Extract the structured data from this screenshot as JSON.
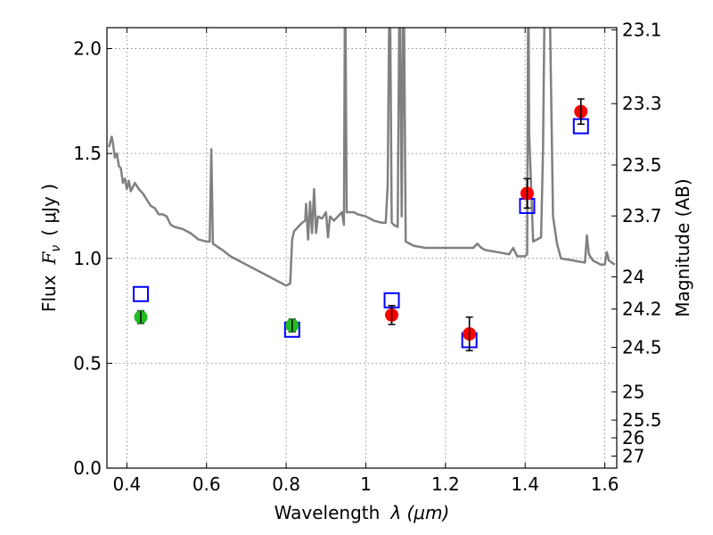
{
  "chart_data": {
    "type": "scatter",
    "xlabel_text": "Wavelength",
    "xlabel_math": "λ (μm)",
    "ylabel_text": "Flux",
    "ylabel_math": "F",
    "ylabel_sub": "ν",
    "ylabel_unit": "( μJy )",
    "y2label": "Magnitude (AB)",
    "xlim": [
      0.35,
      1.63
    ],
    "ylim": [
      0.0,
      2.1
    ],
    "grid": true,
    "x_ticks": [
      0.4,
      0.6,
      0.8,
      1.0,
      1.2,
      1.4,
      1.6
    ],
    "x_tick_labels": [
      "0.4",
      "0.6",
      "0.8",
      "1",
      "1.2",
      "1.4",
      "1.6"
    ],
    "y_ticks": [
      0.0,
      0.5,
      1.0,
      1.5,
      2.0
    ],
    "y_tick_labels": [
      "0.0",
      "0.5",
      "1.0",
      "1.5",
      "2.0"
    ],
    "mag_ticks": [
      23.1,
      23.3,
      23.5,
      23.7,
      24,
      24.2,
      24.5,
      25,
      25.5,
      26,
      27
    ],
    "mag_tick_labels": [
      "23.1",
      "23.3",
      "23.5",
      "23.7",
      "24",
      "24.2",
      "24.5",
      "25",
      "25.5",
      "26",
      "27"
    ],
    "template_spectrum": {
      "color": "#808080",
      "points": [
        [
          0.355,
          1.53
        ],
        [
          0.362,
          1.58
        ],
        [
          0.365,
          1.55
        ],
        [
          0.37,
          1.48
        ],
        [
          0.375,
          1.5
        ],
        [
          0.38,
          1.44
        ],
        [
          0.385,
          1.43
        ],
        [
          0.39,
          1.36
        ],
        [
          0.395,
          1.38
        ],
        [
          0.4,
          1.33
        ],
        [
          0.405,
          1.37
        ],
        [
          0.41,
          1.32
        ],
        [
          0.42,
          1.36
        ],
        [
          0.43,
          1.33
        ],
        [
          0.44,
          1.31
        ],
        [
          0.45,
          1.28
        ],
        [
          0.46,
          1.25
        ],
        [
          0.47,
          1.24
        ],
        [
          0.48,
          1.21
        ],
        [
          0.49,
          1.21
        ],
        [
          0.5,
          1.2
        ],
        [
          0.51,
          1.16
        ],
        [
          0.52,
          1.15
        ],
        [
          0.54,
          1.14
        ],
        [
          0.56,
          1.12
        ],
        [
          0.58,
          1.09
        ],
        [
          0.6,
          1.08
        ],
        [
          0.608,
          1.08
        ],
        [
          0.612,
          1.52
        ],
        [
          0.616,
          1.07
        ],
        [
          0.64,
          1.04
        ],
        [
          0.66,
          1.01
        ],
        [
          0.68,
          0.99
        ],
        [
          0.7,
          0.97
        ],
        [
          0.72,
          0.95
        ],
        [
          0.74,
          0.93
        ],
        [
          0.76,
          0.91
        ],
        [
          0.78,
          0.89
        ],
        [
          0.8,
          0.87
        ],
        [
          0.81,
          0.88
        ],
        [
          0.815,
          1.09
        ],
        [
          0.82,
          1.13
        ],
        [
          0.83,
          1.15
        ],
        [
          0.84,
          1.17
        ],
        [
          0.848,
          1.18
        ],
        [
          0.85,
          1.26
        ],
        [
          0.855,
          1.09
        ],
        [
          0.86,
          1.27
        ],
        [
          0.865,
          1.12
        ],
        [
          0.87,
          1.33
        ],
        [
          0.875,
          1.12
        ],
        [
          0.88,
          1.2
        ],
        [
          0.89,
          1.19
        ],
        [
          0.9,
          1.22
        ],
        [
          0.905,
          1.1
        ],
        [
          0.91,
          1.2
        ],
        [
          0.92,
          1.18
        ],
        [
          0.94,
          1.22
        ],
        [
          0.945,
          1.16
        ],
        [
          0.948,
          2.45
        ],
        [
          0.952,
          1.22
        ],
        [
          0.97,
          1.22
        ],
        [
          0.98,
          1.21
        ],
        [
          1.0,
          1.2
        ],
        [
          1.02,
          1.18
        ],
        [
          1.04,
          1.17
        ],
        [
          1.05,
          1.17
        ],
        [
          1.055,
          1.35
        ],
        [
          1.06,
          2.45
        ],
        [
          1.065,
          1.17
        ],
        [
          1.07,
          1.16
        ],
        [
          1.08,
          1.15
        ],
        [
          1.085,
          2.45
        ],
        [
          1.09,
          1.2
        ],
        [
          1.095,
          2.45
        ],
        [
          1.1,
          1.08
        ],
        [
          1.12,
          1.06
        ],
        [
          1.15,
          1.05
        ],
        [
          1.2,
          1.05
        ],
        [
          1.25,
          1.05
        ],
        [
          1.27,
          1.05
        ],
        [
          1.28,
          1.07
        ],
        [
          1.29,
          1.05
        ],
        [
          1.3,
          1.04
        ],
        [
          1.33,
          1.03
        ],
        [
          1.36,
          1.02
        ],
        [
          1.37,
          1.05
        ],
        [
          1.38,
          1.01
        ],
        [
          1.4,
          1.01
        ],
        [
          1.405,
          1.02
        ],
        [
          1.408,
          2.45
        ],
        [
          1.41,
          1.6
        ],
        [
          1.42,
          1.08
        ],
        [
          1.44,
          1.1
        ],
        [
          1.445,
          1.52
        ],
        [
          1.45,
          2.45
        ],
        [
          1.46,
          2.45
        ],
        [
          1.47,
          1.2
        ],
        [
          1.48,
          1.07
        ],
        [
          1.49,
          1.0
        ],
        [
          1.52,
          0.99
        ],
        [
          1.55,
          0.98
        ],
        [
          1.555,
          1.11
        ],
        [
          1.56,
          1.02
        ],
        [
          1.57,
          0.99
        ],
        [
          1.59,
          0.97
        ],
        [
          1.6,
          0.97
        ],
        [
          1.605,
          1.03
        ],
        [
          1.61,
          0.99
        ],
        [
          1.625,
          0.97
        ]
      ]
    },
    "model_squares": {
      "color": "#0000ff",
      "points": [
        [
          0.435,
          0.83
        ],
        [
          0.815,
          0.66
        ],
        [
          1.065,
          0.8
        ],
        [
          1.26,
          0.61
        ],
        [
          1.405,
          1.25
        ],
        [
          1.54,
          1.63
        ]
      ]
    },
    "observed_green": {
      "color": "#22bb22",
      "points": [
        {
          "x": 0.435,
          "y": 0.72,
          "err": 0.03
        },
        {
          "x": 0.815,
          "y": 0.68,
          "err": 0.03
        }
      ]
    },
    "observed_red": {
      "color": "#ff0000",
      "points": [
        {
          "x": 1.065,
          "y": 0.73,
          "err": 0.045
        },
        {
          "x": 1.26,
          "y": 0.64,
          "err": 0.08
        },
        {
          "x": 1.405,
          "y": 1.31,
          "err": 0.07
        },
        {
          "x": 1.54,
          "y": 1.7,
          "err": 0.06
        }
      ]
    }
  }
}
